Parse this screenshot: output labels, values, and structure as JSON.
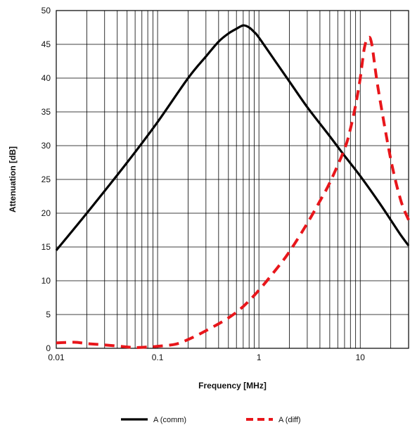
{
  "chart_data": {
    "type": "line",
    "title": "",
    "xlabel": "Frequency [MHz]",
    "ylabel": "Attenuation [dB]",
    "x_scale": "log",
    "xlim": [
      0.01,
      30
    ],
    "ylim": [
      0,
      50
    ],
    "x_ticks": [
      "0.01",
      "0.1",
      "1",
      "10"
    ],
    "y_ticks": [
      "0",
      "5",
      "10",
      "15",
      "20",
      "25",
      "30",
      "35",
      "40",
      "45",
      "50"
    ],
    "grid": true,
    "legend_position": "bottom",
    "series": [
      {
        "name": "A (comm)",
        "color": "#000000",
        "style": "solid",
        "x": [
          0.01,
          0.02,
          0.05,
          0.1,
          0.2,
          0.3,
          0.4,
          0.5,
          0.6,
          0.7,
          0.8,
          0.9,
          1,
          1.5,
          2,
          3,
          5,
          7,
          10,
          15,
          20,
          25,
          30
        ],
        "y": [
          14.5,
          20,
          27.5,
          33.5,
          40,
          43.2,
          45.4,
          46.6,
          47.3,
          47.8,
          47.5,
          46.8,
          46.0,
          42.2,
          39.5,
          35.7,
          31.4,
          28.5,
          25.5,
          21.8,
          19.0,
          16.8,
          15.2
        ]
      },
      {
        "name": "A (diff)",
        "color": "#e8161b",
        "style": "dashed",
        "x": [
          0.01,
          0.015,
          0.02,
          0.03,
          0.05,
          0.06,
          0.08,
          0.1,
          0.15,
          0.2,
          0.3,
          0.5,
          0.7,
          1,
          1.5,
          2,
          3,
          4,
          5,
          7,
          8,
          9,
          10,
          11,
          12,
          13,
          15,
          20,
          25,
          30
        ],
        "y": [
          0.8,
          0.9,
          0.7,
          0.5,
          0.2,
          0.1,
          0.2,
          0.3,
          0.6,
          1.3,
          2.6,
          4.5,
          6.2,
          8.6,
          11.8,
          14.3,
          18.5,
          21.8,
          24.5,
          29.5,
          32.5,
          36.0,
          40.0,
          44.5,
          46.0,
          45.0,
          38.5,
          28.0,
          22.0,
          19.0
        ]
      }
    ]
  }
}
